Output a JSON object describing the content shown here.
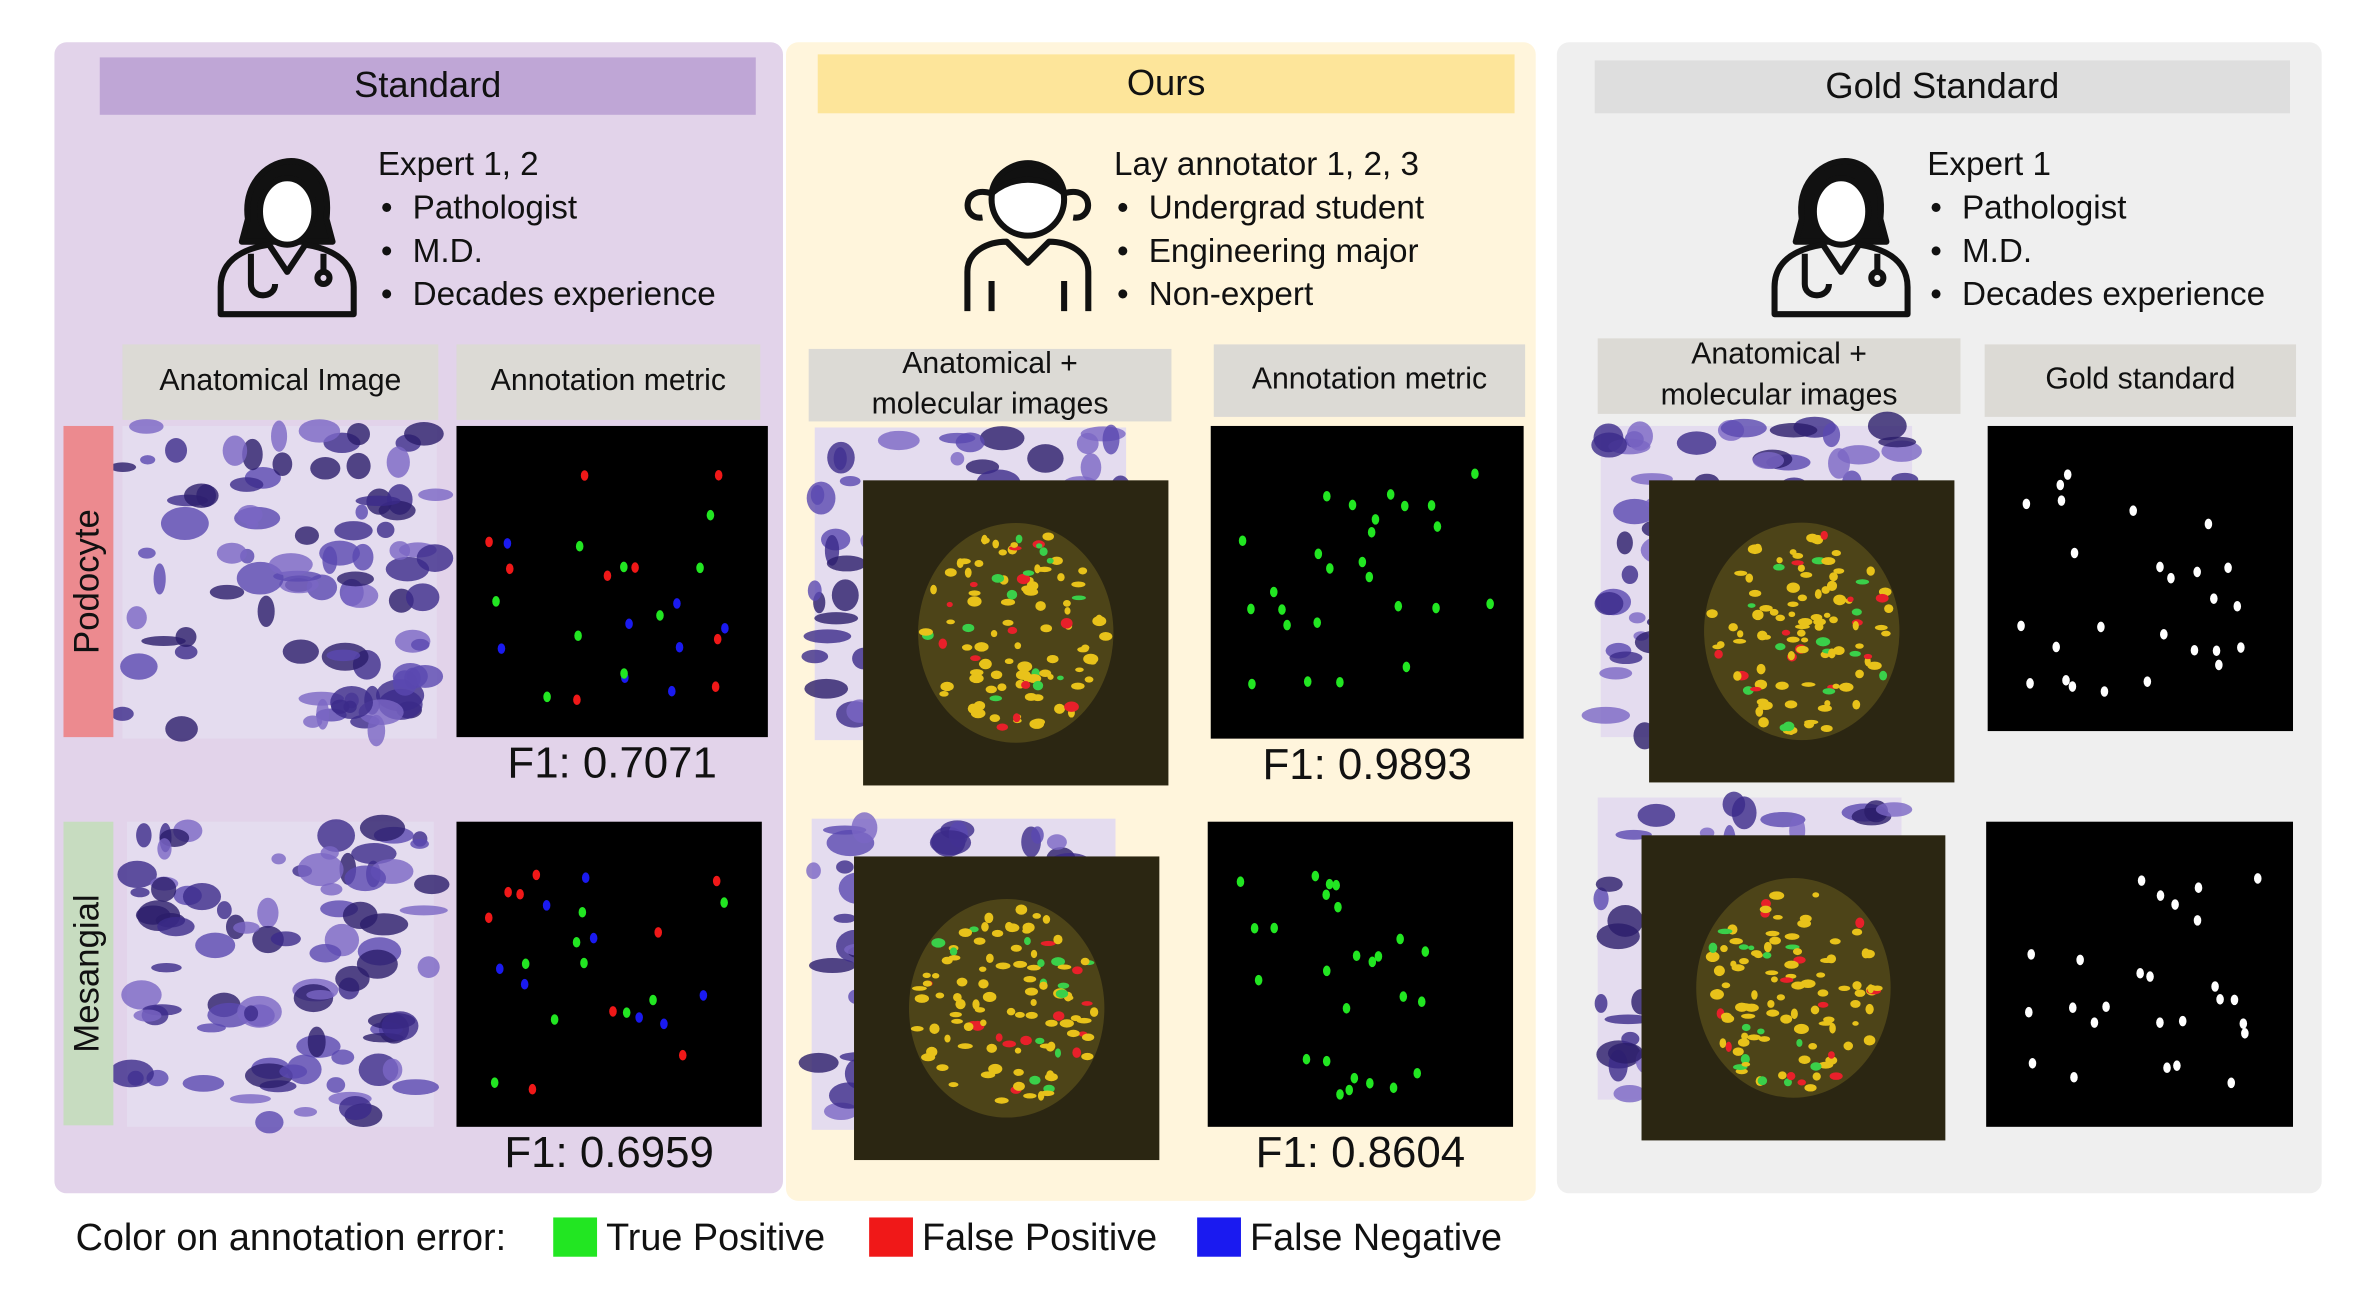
{
  "panels": [
    {
      "title": "Standard",
      "annotator": {
        "name": "Expert 1, 2",
        "bullets": [
          "Pathologist",
          "M.D.",
          "Decades experience"
        ]
      },
      "column_headers": [
        {
          "lines": [
            "Anatomical Image"
          ]
        },
        {
          "lines": [
            "Annotation metric"
          ]
        }
      ],
      "scores": [
        "F1: 0.7071",
        "F1: 0.6959"
      ]
    },
    {
      "title": "Ours",
      "annotator": {
        "name": "Lay annotator 1, 2, 3",
        "bullets": [
          "Undergrad student",
          "Engineering major",
          "Non-expert"
        ]
      },
      "column_headers": [
        {
          "lines": [
            "Anatomical  +",
            "molecular images"
          ]
        },
        {
          "lines": [
            "Annotation metric"
          ]
        }
      ],
      "scores": [
        "F1: 0.9893",
        "F1: 0.8604"
      ]
    },
    {
      "title": "Gold Standard",
      "annotator": {
        "name": "Expert 1",
        "bullets": [
          "Pathologist",
          "M.D.",
          "Decades experience"
        ]
      },
      "column_headers": [
        {
          "lines": [
            "Anatomical  +",
            "molecular images"
          ]
        },
        {
          "lines": [
            "Gold standard"
          ]
        }
      ],
      "scores": []
    }
  ],
  "row_labels": [
    "Podocyte",
    "Mesangial"
  ],
  "legend": {
    "title": "Color on annotation error:",
    "items": [
      {
        "label": "True Positive",
        "color": "#22e622"
      },
      {
        "label": "False Positive",
        "color": "#f01818"
      },
      {
        "label": "False Negative",
        "color": "#1a1af0"
      }
    ]
  }
}
